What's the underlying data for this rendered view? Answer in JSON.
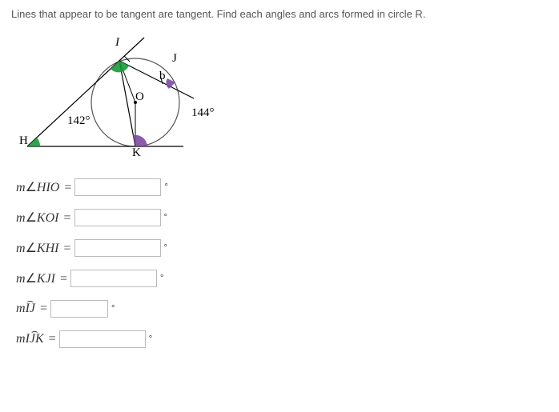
{
  "prompt": "Lines that appear to be tangent are tangent. Find each angles and arcs formed in circle R.",
  "figure": {
    "labels": {
      "H": "H",
      "I": "I",
      "J": "J",
      "K": "K",
      "O": "O",
      "b": "b"
    },
    "angle_142": "142°",
    "angle_144": "144°",
    "colors": {
      "accent": "#c00",
      "circle_stroke": "#333",
      "fill_green": "#169a3a",
      "fill_purple": "#7d4aa3"
    }
  },
  "rows": [
    {
      "label_html": "m<span class='angle'>∠</span>HIO",
      "kind": "angle",
      "value": ""
    },
    {
      "label_html": "m<span class='angle'>∠</span>KOI",
      "kind": "angle",
      "value": ""
    },
    {
      "label_html": "m<span class='angle'>∠</span>KHI",
      "kind": "angle",
      "value": ""
    },
    {
      "label_html": "m<span class='angle'>∠</span>KJI",
      "kind": "angle",
      "value": ""
    },
    {
      "label_html": "m<span class='arc'>IJ</span>",
      "kind": "arc",
      "value": "",
      "width": 72,
      "indent": 32
    },
    {
      "label_html": "m<span class='arc'>IJK</span>",
      "kind": "arc",
      "value": ""
    }
  ],
  "degree_symbol": "°"
}
